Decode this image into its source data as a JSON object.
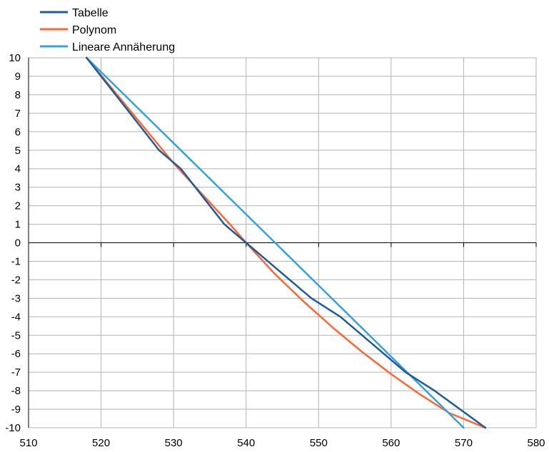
{
  "chart_data": {
    "type": "line",
    "xlim": [
      510,
      580
    ],
    "ylim": [
      -10,
      10
    ],
    "xticks": [
      510,
      520,
      530,
      540,
      550,
      560,
      570,
      580
    ],
    "yticks": [
      10,
      9,
      8,
      7,
      6,
      5,
      4,
      3,
      2,
      1,
      0,
      -1,
      -2,
      -3,
      -4,
      -5,
      -6,
      -7,
      -8,
      -9,
      -10
    ],
    "grid": true,
    "legend_position": "top-left",
    "series": [
      {
        "name": "Tabelle",
        "color": "#1f5c99",
        "x": [
          518,
          528,
          531,
          537,
          540,
          549,
          553,
          559,
          562,
          566,
          573
        ],
        "y": [
          10,
          5,
          4,
          1,
          0,
          -3,
          -4,
          -6,
          -7,
          -8,
          -10
        ]
      },
      {
        "name": "Polynom",
        "color": "#ff6633",
        "x": [
          518,
          522,
          526,
          530,
          534,
          538,
          540,
          544,
          548,
          552,
          556,
          560,
          564,
          568,
          573
        ],
        "y": [
          10,
          8.1,
          6.2,
          4.3,
          2.6,
          0.9,
          0,
          -1.7,
          -3.2,
          -4.6,
          -5.9,
          -7.1,
          -8.2,
          -9.2,
          -10
        ]
      },
      {
        "name": "Lineare Annäherung",
        "color": "#33a3dc",
        "x": [
          518,
          570
        ],
        "y": [
          10,
          -10
        ]
      }
    ]
  }
}
